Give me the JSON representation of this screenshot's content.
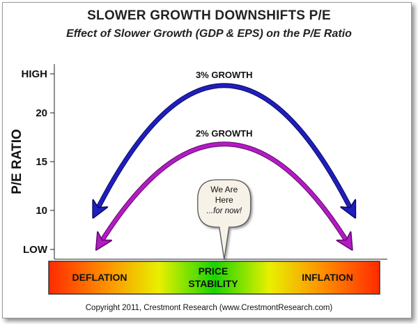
{
  "title": "SLOWER GROWTH DOWNSHIFTS P/E",
  "subtitle": "Effect of Slower Growth (GDP & EPS) on the P/E Ratio",
  "copyright": "Copyright 2011, Crestmont Research (www.CrestmontResearch.com)",
  "colors": {
    "growth3": "#1f1fbf",
    "growth2": "#b31bc4",
    "callout_fill": "#f7f2e8",
    "gradient": [
      "#ff2a00",
      "#ff8c00",
      "#e8f000",
      "#19d400",
      "#e8f000",
      "#ff8c00",
      "#ff2a00"
    ]
  },
  "chart_data": {
    "type": "line",
    "title": "SLOWER GROWTH DOWNSHIFTS P/E",
    "subtitle": "Effect of Slower Growth (GDP & EPS) on the P/E Ratio",
    "ylabel": "P/E RATIO",
    "xlabel": "",
    "ylim": [
      5,
      25
    ],
    "yticks": [
      {
        "value": 24,
        "label": "HIGH"
      },
      {
        "value": 20,
        "label": "20"
      },
      {
        "value": 15,
        "label": "15"
      },
      {
        "value": 10,
        "label": "10"
      },
      {
        "value": 6,
        "label": "LOW"
      }
    ],
    "xlim": [
      0,
      100
    ],
    "series": [
      {
        "name": "3% GROWTH",
        "label": "3% GROWTH",
        "color": "growth3",
        "x": [
          12,
          51,
          90
        ],
        "y": [
          9.5,
          22.8,
          9.5
        ]
      },
      {
        "name": "2% GROWTH",
        "label": "2% GROWTH",
        "color": "growth2",
        "x": [
          13,
          51,
          89
        ],
        "y": [
          6.2,
          16.8,
          6.2
        ]
      }
    ],
    "callout": {
      "lines": [
        "We Are",
        "Here"
      ],
      "italic": "...for now!",
      "x": 51
    },
    "spectrum": {
      "left": "DEFLATION",
      "center": [
        "PRICE",
        "STABILITY"
      ],
      "right": "INFLATION"
    }
  }
}
